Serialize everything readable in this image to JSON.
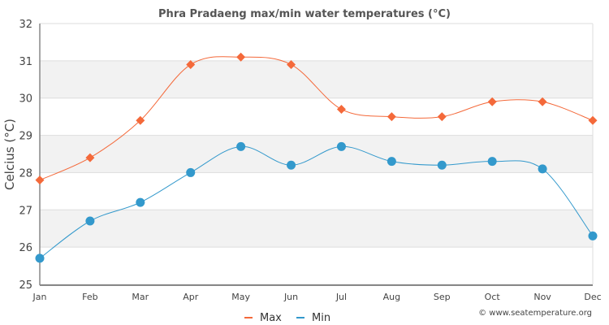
{
  "chart_data": {
    "type": "line",
    "title": "Phra Pradaeng max/min water temperatures (°C)",
    "xlabel": "",
    "ylabel": "Celcius (°C)",
    "categories": [
      "Jan",
      "Feb",
      "Mar",
      "Apr",
      "May",
      "Jun",
      "Jul",
      "Aug",
      "Sep",
      "Oct",
      "Nov",
      "Dec"
    ],
    "ylim": [
      25,
      32
    ],
    "yticks": [
      25,
      26,
      27,
      28,
      29,
      30,
      31,
      32
    ],
    "grid": true,
    "legend_position": "bottom-center",
    "series": [
      {
        "name": "Max",
        "color": "#f4693a",
        "marker": "diamond",
        "values": [
          27.8,
          28.4,
          29.4,
          30.9,
          31.1,
          30.9,
          29.7,
          29.5,
          29.5,
          29.9,
          29.9,
          29.4
        ]
      },
      {
        "name": "Min",
        "color": "#3399cc",
        "marker": "circle",
        "values": [
          25.7,
          26.7,
          27.2,
          28.0,
          28.7,
          28.2,
          28.7,
          28.3,
          28.2,
          28.3,
          28.1,
          26.3
        ]
      }
    ],
    "credit": "© www.seatemperature.org"
  }
}
